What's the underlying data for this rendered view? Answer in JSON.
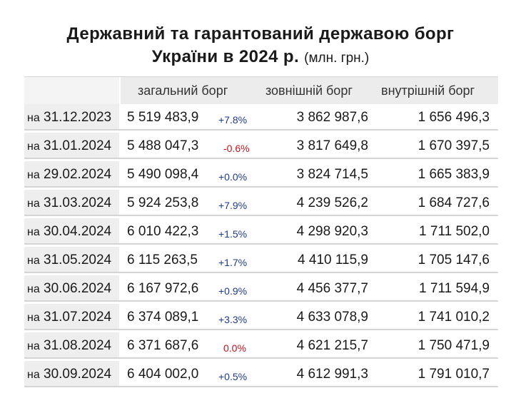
{
  "title": {
    "line1": "Державний та гарантований державою борг",
    "line2": "України в 2024 р.",
    "unit": "(млн. грн.)"
  },
  "headers": {
    "total": "загальний борг",
    "external": "зовнішній борг",
    "internal": "внутрішній борг"
  },
  "date_prefix": "на",
  "colors": {
    "positive_change": "#1f3a8a",
    "negative_change": "#c0141c"
  },
  "rows": [
    {
      "date": "31.12.2023",
      "total": "5 519 483,9",
      "change": "+7.8%",
      "external": "3 862 987,6",
      "internal": "1 656 496,3",
      "trend": "positive"
    },
    {
      "date": "31.01.2024",
      "total": "5 488 047,3",
      "change": "-0.6%",
      "external": "3 817 649,8",
      "internal": "1 670 397,5",
      "trend": "negative"
    },
    {
      "date": "29.02.2024",
      "total": "5 490 098,4",
      "change": "+0.0%",
      "external": "3 824 714,5",
      "internal": "1 665 383,9",
      "trend": "positive"
    },
    {
      "date": "31.03.2024",
      "total": "5 924 253,8",
      "change": "+7.9%",
      "external": "4 239 526,2",
      "internal": "1 684 727,6",
      "trend": "positive"
    },
    {
      "date": "30.04.2024",
      "total": "6 010 422,3",
      "change": "+1.5%",
      "external": "4 298 920,3",
      "internal": "1 711 502,0",
      "trend": "positive"
    },
    {
      "date": "31.05.2024",
      "total": "6 115 263,5",
      "change": "+1.7%",
      "external": "4 410 115,9",
      "internal": "1 705 147,6",
      "trend": "positive"
    },
    {
      "date": "30.06.2024",
      "total": "6 167 972,6",
      "change": "+0.9%",
      "external": "4 456 377,7",
      "internal": "1 711 594,9",
      "trend": "positive"
    },
    {
      "date": "31.07.2024",
      "total": "6 374 089,1",
      "change": "+3.3%",
      "external": "4 633 078,9",
      "internal": "1 741 010,2",
      "trend": "positive"
    },
    {
      "date": "31.08.2024",
      "total": "6 371 687,6",
      "change": "0.0%",
      "external": "4 621 215,7",
      "internal": "1 750 471,9",
      "trend": "negative"
    },
    {
      "date": "30.09.2024",
      "total": "6 404 002,0",
      "change": "+0.5%",
      "external": "4 612 991,3",
      "internal": "1 791 010,7",
      "trend": "positive"
    }
  ]
}
